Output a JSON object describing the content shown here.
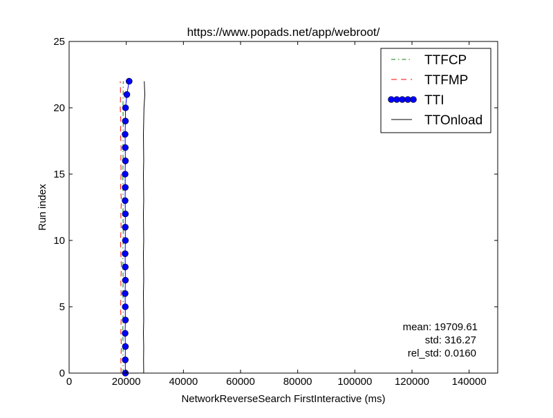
{
  "chart_data": {
    "type": "line",
    "title": "https://www.popads.net/app/webroot/",
    "xlabel": "NetworkReverseSearch FirstInteractive (ms)",
    "ylabel": "Run index",
    "xlim": [
      0,
      150000
    ],
    "ylim": [
      0,
      25
    ],
    "xticks": [
      0,
      20000,
      40000,
      60000,
      80000,
      100000,
      120000,
      140000
    ],
    "yticks": [
      0,
      5,
      10,
      15,
      20,
      25
    ],
    "grid": false,
    "legend_position": "top-right",
    "y": [
      0,
      1,
      2,
      3,
      4,
      5,
      6,
      7,
      8,
      9,
      10,
      11,
      12,
      13,
      14,
      15,
      16,
      17,
      18,
      19,
      20,
      21,
      22
    ],
    "series": [
      {
        "name": "TTFCP",
        "style": "dash-dot",
        "color": "#008000",
        "x": [
          18900,
          18850,
          18900,
          18800,
          18850,
          18950,
          18850,
          18900,
          18850,
          18800,
          18900,
          18950,
          18850,
          18900,
          18850,
          18800,
          18900,
          18850,
          18900,
          18950,
          18850,
          18900,
          18950
        ]
      },
      {
        "name": "TTFMP",
        "style": "dashed",
        "color": "#ff0000",
        "x": [
          18200,
          18100,
          18300,
          18100,
          18200,
          18000,
          18200,
          18100,
          18300,
          18100,
          18000,
          18200,
          18100,
          18300,
          18000,
          18200,
          18100,
          18200,
          18000,
          18100,
          17900,
          18000,
          17900
        ]
      },
      {
        "name": "TTI",
        "style": "solid-circle-markers",
        "color": "#0000ff",
        "x": [
          19700,
          19650,
          19700,
          19600,
          19700,
          19650,
          19600,
          19700,
          19650,
          19600,
          19700,
          19650,
          19700,
          19600,
          19650,
          19600,
          19700,
          19650,
          19600,
          19700,
          19750,
          20200,
          21000
        ]
      },
      {
        "name": "TTOnload",
        "style": "solid",
        "color": "#000000",
        "x": [
          26100,
          26050,
          26100,
          26000,
          26100,
          26050,
          26000,
          26100,
          26050,
          26000,
          26100,
          26050,
          26000,
          26100,
          26050,
          26000,
          26100,
          26050,
          26000,
          26100,
          26200,
          26500,
          26300
        ]
      }
    ],
    "annotations": [
      "mean: 19709.61",
      "std: 316.27",
      "rel_std: 0.0160"
    ]
  }
}
